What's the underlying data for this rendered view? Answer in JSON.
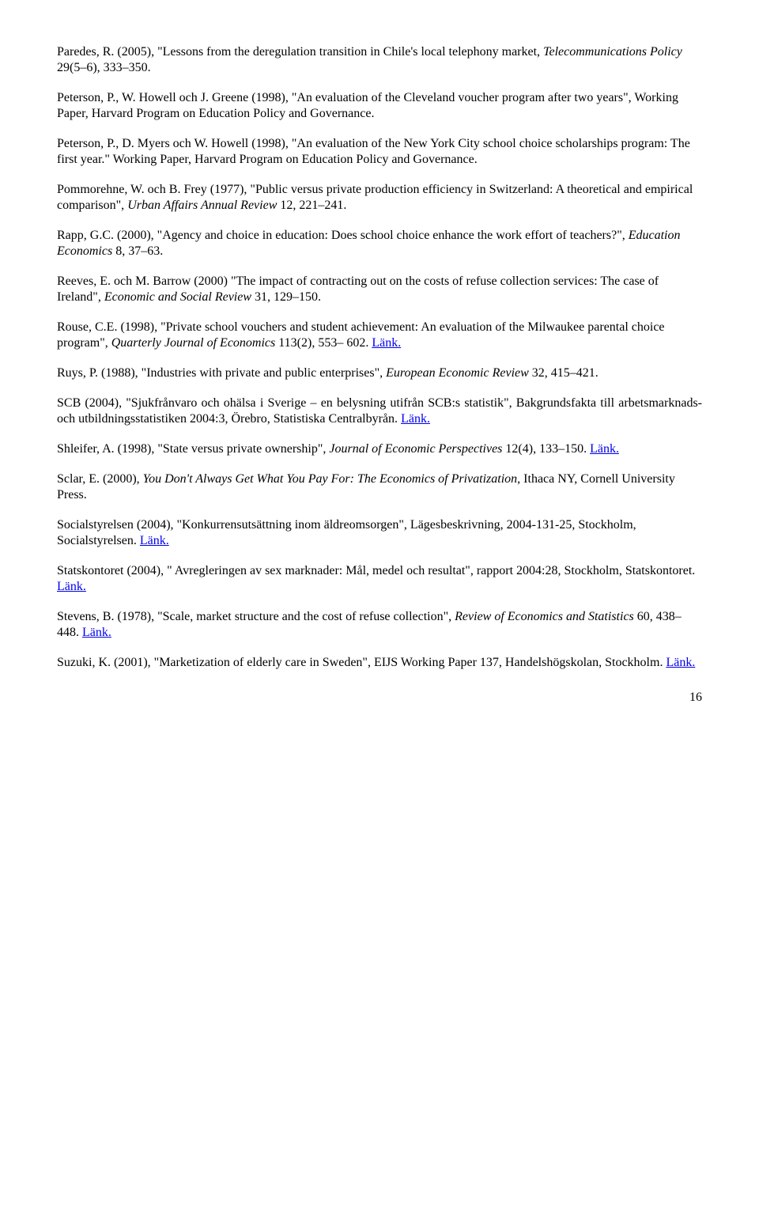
{
  "refs": {
    "r1a": "Paredes, R. (2005), \"Lessons from the deregulation transition in Chile's local telephony market, ",
    "r1i": "Telecommunications Policy",
    "r1b": " 29(5–6), 333–350.",
    "r2": "Peterson, P., W. Howell och J. Greene (1998), \"An evaluation of the Cleveland voucher program after two years\", Working Paper, Harvard Program on Education Policy and Governance.",
    "r3": "Peterson, P., D. Myers och W. Howell (1998), \"An evaluation of the New York City school choice scholarships program: The first year.\" Working Paper, Harvard Program on Education Policy and Governance.",
    "r4a": "Pommorehne, W. och B. Frey (1977), \"Public versus private production efficiency in Switzerland: A theoretical and empirical comparison\", ",
    "r4i": "Urban Affairs Annual Review",
    "r4b": " 12, 221–241.",
    "r5a": "Rapp, G.C. (2000), \"Agency and choice in education: Does school choice enhance the work effort of teachers?\", ",
    "r5i": "Education Economics",
    "r5b": " 8, 37–63.",
    "r6a": "Reeves, E. och M. Barrow (2000) \"The impact of contracting out on the costs of refuse collection services: The case of Ireland\", ",
    "r6i": "Economic and Social Review",
    "r6b": " 31, 129–150.",
    "r7a": "Rouse, C.E. (1998), \"Private school vouchers and student achievement: An evaluation of the Milwaukee parental choice program\", ",
    "r7i": "Quarterly Journal of Economics",
    "r7b": " 113(2), 553– 602. ",
    "r7link": "Länk.",
    "r8a": "Ruys, P. (1988), \"Industries with private and public enterprises\", ",
    "r8i": "European Economic Review",
    "r8b": " 32, 415–421.",
    "r9a": "SCB (2004), \"Sjukfrånvaro och ohälsa i Sverige – en belysning utifrån SCB:s statistik\", Bakgrundsfakta till arbetsmarknads- och utbildningsstatistiken 2004:3, Örebro, Statistiska Centralbyrån. ",
    "r9link": "Länk.",
    "r10a": "Shleifer, A. (1998), \"State versus private ownership\", ",
    "r10i": "Journal of Economic Perspectives",
    "r10b": " 12(4), 133–150. ",
    "r10link": "Länk.",
    "r11a": "Sclar, E. (2000), ",
    "r11i": "You Don't Always Get What You Pay For: The Economics of Privatization",
    "r11b": ", Ithaca NY, Cornell University Press.",
    "r12a": "Socialstyrelsen (2004), \"Konkurrensutsättning inom äldreomsorgen\", Lägesbeskrivning, 2004-131-25, Stockholm, Socialstyrelsen. ",
    "r12link": "Länk.",
    "r13a": "Statskontoret (2004), \" Avregleringen av sex marknader: Mål, medel och resultat\", rapport 2004:28, Stockholm, Statskontoret. ",
    "r13link": "Länk.",
    "r14a": "Stevens, B. (1978), \"Scale, market structure and the cost of refuse collection\", ",
    "r14i": "Review of Economics and Statistics",
    "r14b": " 60, 438–448. ",
    "r14link": "Länk.",
    "r15a": "Suzuki, K. (2001), \"Marketization of elderly care in Sweden\", EIJS Working Paper 137, Handelshögskolan, Stockholm. ",
    "r15link": "Länk."
  },
  "page_number": "16",
  "link_color": "#0000ee",
  "text_color": "#000000",
  "background_color": "#ffffff",
  "font_family": "Times New Roman",
  "font_size_pt": 12
}
